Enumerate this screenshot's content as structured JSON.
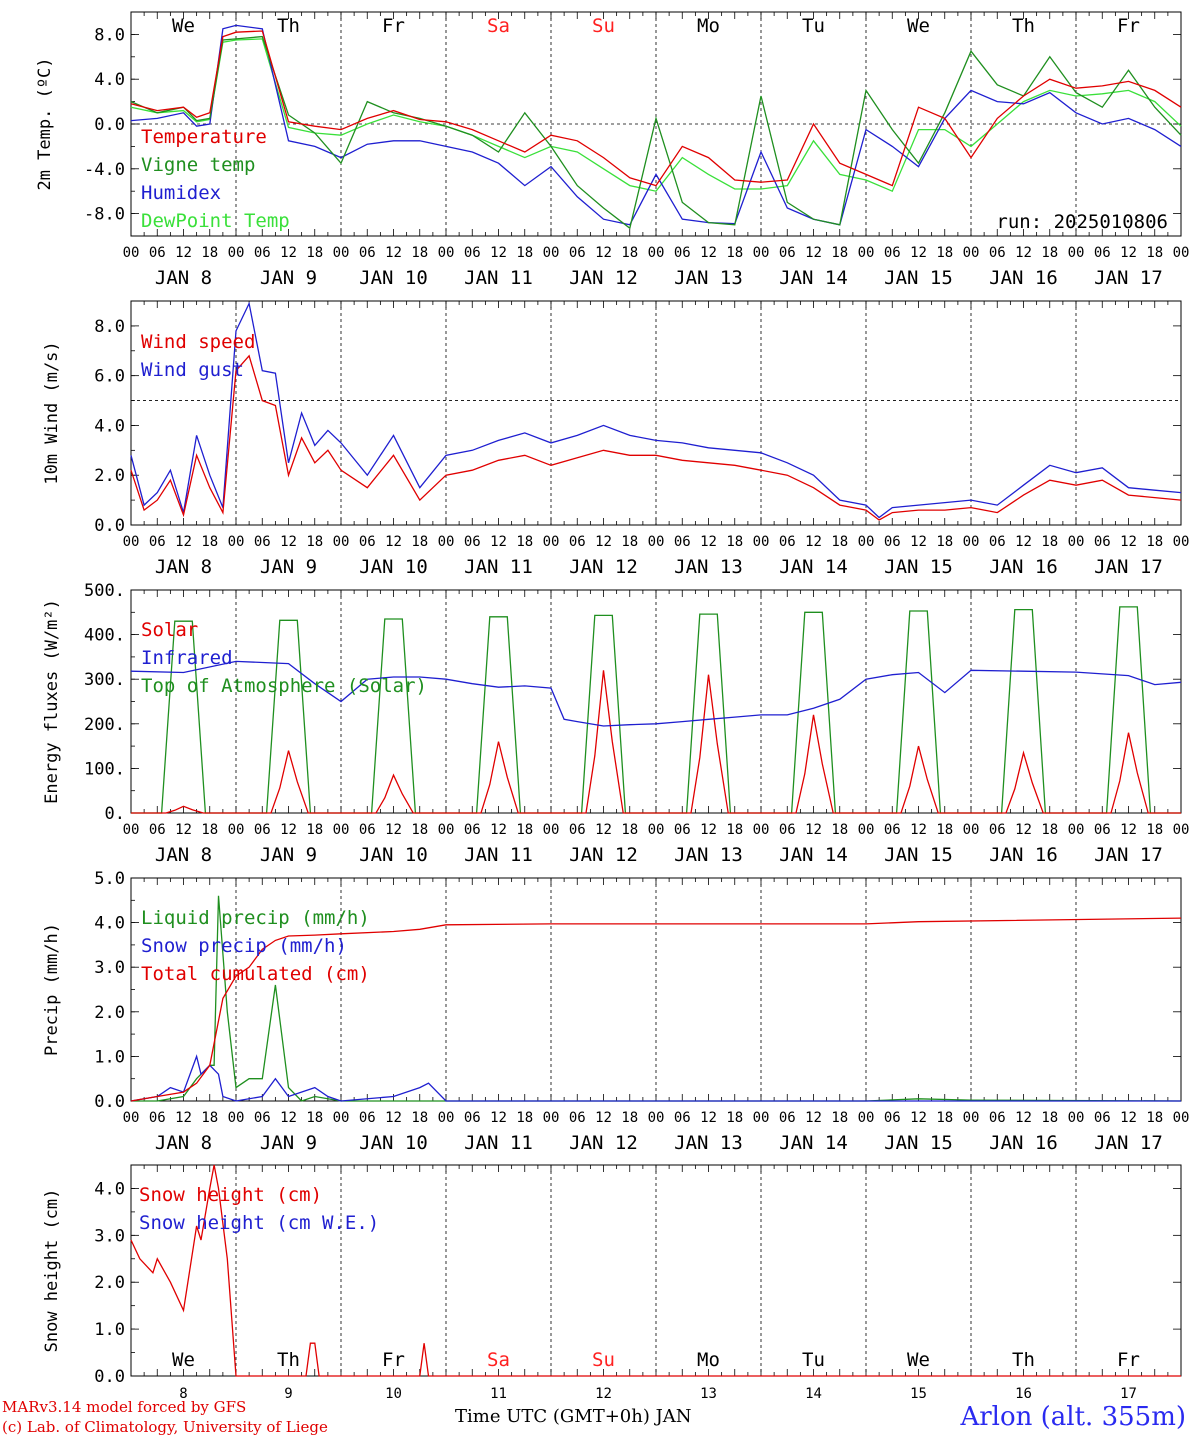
{
  "days": {
    "names": [
      "We",
      "Th",
      "Fr",
      "Sa",
      "Su",
      "Mo",
      "Tu",
      "We",
      "Th",
      "Fr"
    ],
    "weekend_flags": [
      false,
      false,
      false,
      true,
      true,
      false,
      false,
      false,
      false,
      false
    ],
    "dates": [
      "JAN  8",
      "JAN  9",
      "JAN 10",
      "JAN 11",
      "JAN 12",
      "JAN 13",
      "JAN 14",
      "JAN 15",
      "JAN 16",
      "JAN 17"
    ],
    "bottom_numbers": [
      "8",
      "9",
      "10",
      "11",
      "12",
      "13",
      "14",
      "15",
      "16",
      "17"
    ],
    "hour_ticks": [
      "00",
      "06",
      "12",
      "18"
    ],
    "final_tick": "00"
  },
  "colors": {
    "red": "#e00000",
    "green": "#1f8f1f",
    "blue": "#1f1fd0",
    "lightgreen": "#3ae03a",
    "weekend": "#ff2020"
  },
  "chart_data": [
    {
      "type": "line",
      "ylabel": "2m Temp. (ºC)",
      "ylim": [
        -10,
        10
      ],
      "yticks": [
        -8,
        -4,
        0,
        4,
        8
      ],
      "ytick_labels": [
        "-8.0",
        "-4.0",
        "0.0",
        "4.0",
        "8.0"
      ],
      "hline": 0,
      "annotation": "run: 2025010806",
      "x_hours": [
        0,
        6,
        12,
        15,
        18,
        21,
        24,
        30,
        36,
        42,
        48,
        54,
        60,
        66,
        72,
        78,
        84,
        90,
        96,
        102,
        108,
        114,
        120,
        126,
        132,
        138,
        144,
        150,
        156,
        162,
        168,
        174,
        180,
        186,
        192,
        198,
        204,
        210,
        216,
        222,
        228,
        234,
        240
      ],
      "series": [
        {
          "name": "Temperature",
          "color": "red",
          "values": [
            1.8,
            1.2,
            1.5,
            0.6,
            1.0,
            7.8,
            8.2,
            8.3,
            0.2,
            -0.2,
            -0.5,
            0.5,
            1.2,
            0.4,
            0.2,
            -0.5,
            -1.5,
            -2.5,
            -1.0,
            -1.5,
            -3.0,
            -4.8,
            -5.5,
            -2.0,
            -3.0,
            -5.0,
            -5.2,
            -5.0,
            0.0,
            -3.5,
            -4.5,
            -5.5,
            1.5,
            0.5,
            -3.0,
            0.5,
            2.5,
            4.0,
            3.2,
            3.4,
            3.8,
            3.0,
            1.5
          ]
        },
        {
          "name": "Vigne temp",
          "color": "green",
          "values": [
            2.0,
            1.0,
            1.5,
            0.3,
            0.5,
            7.5,
            7.6,
            7.8,
            0.8,
            -0.8,
            -3.5,
            2.0,
            1.0,
            0.5,
            -0.2,
            -1.0,
            -2.5,
            1.0,
            -2.0,
            -5.5,
            -7.5,
            -9.3,
            0.5,
            -7.0,
            -8.8,
            -9.0,
            2.5,
            -7.0,
            -8.5,
            -9.0,
            3.0,
            -0.5,
            -3.5,
            1.0,
            6.5,
            3.5,
            2.5,
            6.0,
            2.8,
            1.5,
            4.8,
            1.5,
            -1.0
          ]
        },
        {
          "name": "Humidex",
          "color": "blue",
          "values": [
            0.3,
            0.5,
            1.0,
            -0.2,
            0.0,
            8.5,
            8.8,
            8.5,
            -1.5,
            -2.0,
            -3.0,
            -1.8,
            -1.5,
            -1.5,
            -2.0,
            -2.5,
            -3.5,
            -5.5,
            -3.8,
            -6.5,
            -8.5,
            -9.0,
            -4.5,
            -8.5,
            -8.8,
            -8.9,
            -2.5,
            -7.5,
            -8.5,
            -9.0,
            -0.5,
            -2.0,
            -3.8,
            0.5,
            3.0,
            2.0,
            1.8,
            2.8,
            1.0,
            0.0,
            0.5,
            -0.5,
            -2.0
          ]
        },
        {
          "name": "DewPoint Temp",
          "color": "lightgreen",
          "values": [
            1.5,
            1.0,
            1.2,
            0.2,
            0.4,
            7.3,
            7.5,
            7.6,
            -0.3,
            -0.8,
            -1.0,
            0.0,
            0.8,
            0.2,
            -0.2,
            -1.0,
            -2.0,
            -3.0,
            -2.0,
            -2.5,
            -4.0,
            -5.5,
            -6.0,
            -3.0,
            -4.5,
            -5.8,
            -5.8,
            -5.5,
            -1.5,
            -4.5,
            -5.0,
            -6.0,
            -0.5,
            -0.5,
            -2.0,
            0.0,
            2.0,
            3.0,
            2.5,
            2.7,
            3.0,
            2.0,
            -0.2
          ]
        }
      ]
    },
    {
      "type": "line",
      "ylabel": "10m Wind (m/s)",
      "ylim": [
        0,
        9
      ],
      "yticks": [
        0,
        2,
        4,
        6,
        8
      ],
      "ytick_labels": [
        "0.0",
        "2.0",
        "4.0",
        "6.0",
        "8.0"
      ],
      "hline": 5,
      "x_hours": [
        0,
        3,
        6,
        9,
        12,
        15,
        18,
        21,
        24,
        27,
        30,
        33,
        36,
        39,
        42,
        45,
        48,
        54,
        60,
        66,
        72,
        78,
        84,
        90,
        96,
        102,
        108,
        114,
        120,
        126,
        132,
        138,
        144,
        150,
        156,
        162,
        168,
        171,
        174,
        180,
        186,
        192,
        198,
        204,
        210,
        216,
        222,
        228,
        234,
        240
      ],
      "series": [
        {
          "name": "Wind speed",
          "color": "red",
          "values": [
            2.2,
            0.6,
            1.0,
            1.8,
            0.4,
            2.8,
            1.5,
            0.5,
            6.2,
            6.8,
            5.0,
            4.8,
            2.0,
            3.5,
            2.5,
            3.0,
            2.2,
            1.5,
            2.8,
            1.0,
            2.0,
            2.2,
            2.6,
            2.8,
            2.4,
            2.7,
            3.0,
            2.8,
            2.8,
            2.6,
            2.5,
            2.4,
            2.2,
            2.0,
            1.5,
            0.8,
            0.6,
            0.2,
            0.5,
            0.6,
            0.6,
            0.7,
            0.5,
            1.2,
            1.8,
            1.6,
            1.8,
            1.2,
            1.1,
            1.0
          ]
        },
        {
          "name": "Wind gust",
          "color": "blue",
          "values": [
            2.8,
            0.8,
            1.3,
            2.2,
            0.5,
            3.6,
            2.0,
            0.7,
            7.8,
            8.9,
            6.2,
            6.1,
            2.5,
            4.5,
            3.2,
            3.8,
            3.3,
            2.0,
            3.6,
            1.5,
            2.8,
            3.0,
            3.4,
            3.7,
            3.3,
            3.6,
            4.0,
            3.6,
            3.4,
            3.3,
            3.1,
            3.0,
            2.9,
            2.5,
            2.0,
            1.0,
            0.8,
            0.3,
            0.7,
            0.8,
            0.9,
            1.0,
            0.8,
            1.6,
            2.4,
            2.1,
            2.3,
            1.5,
            1.4,
            1.3
          ]
        }
      ]
    },
    {
      "type": "line",
      "ylabel": "Energy fluxes (W/m²)",
      "ylim": [
        0,
        500
      ],
      "yticks": [
        0,
        100,
        200,
        300,
        400,
        500
      ],
      "ytick_labels": [
        "0.",
        "100.",
        "200.",
        "300.",
        "400.",
        "500."
      ],
      "solar_peaks": [
        15,
        140,
        85,
        160,
        320,
        310,
        220,
        150,
        135,
        180
      ],
      "toa_peaks": [
        430,
        432,
        435,
        440,
        443,
        446,
        450,
        453,
        456,
        462
      ],
      "infrared": {
        "x_hours": [
          0,
          12,
          24,
          36,
          42,
          48,
          54,
          60,
          66,
          72,
          78,
          84,
          90,
          96,
          99,
          102,
          108,
          114,
          120,
          126,
          132,
          138,
          144,
          150,
          156,
          162,
          168,
          174,
          180,
          186,
          192,
          204,
          216,
          228,
          234,
          240
        ],
        "values": [
          318,
          315,
          340,
          335,
          290,
          250,
          300,
          305,
          305,
          300,
          290,
          282,
          285,
          280,
          210,
          205,
          195,
          198,
          200,
          205,
          210,
          215,
          220,
          220,
          235,
          255,
          300,
          310,
          315,
          270,
          320,
          318,
          316,
          308,
          288,
          293
        ]
      },
      "series": [
        {
          "name": "Solar",
          "color": "red"
        },
        {
          "name": "Infrared",
          "color": "blue"
        },
        {
          "name": "Top of Atmosphere (Solar)",
          "color": "green"
        }
      ]
    },
    {
      "type": "line",
      "ylabel": "Precip (mm/h)",
      "ylim": [
        0,
        5
      ],
      "yticks": [
        0,
        1,
        2,
        3,
        4,
        5
      ],
      "ytick_labels": [
        "0.0",
        "1.0",
        "2.0",
        "3.0",
        "4.0",
        "5.0"
      ],
      "liquid": {
        "x_hours": [
          0,
          6,
          12,
          15,
          18,
          19,
          20,
          22,
          24,
          27,
          30,
          33,
          36,
          39,
          42,
          48,
          54,
          60,
          72,
          168,
          180,
          192,
          240
        ],
        "values": [
          0.0,
          0.0,
          0.1,
          0.5,
          0.8,
          0.8,
          4.6,
          2.0,
          0.3,
          0.5,
          0.5,
          2.6,
          0.3,
          0.0,
          0.1,
          0.0,
          0.0,
          0.0,
          0.0,
          0.0,
          0.05,
          0.02,
          0.0
        ]
      },
      "snow": {
        "x_hours": [
          0,
          6,
          9,
          12,
          15,
          16,
          18,
          20,
          21,
          24,
          30,
          33,
          36,
          42,
          45,
          48,
          60,
          66,
          68,
          72,
          240
        ],
        "values": [
          0.0,
          0.1,
          0.3,
          0.2,
          1.0,
          0.6,
          0.8,
          0.6,
          0.1,
          0.0,
          0.1,
          0.5,
          0.1,
          0.3,
          0.1,
          0.0,
          0.1,
          0.3,
          0.4,
          0.0,
          0.0
        ]
      },
      "cumulated": {
        "x_hours": [
          0,
          6,
          12,
          15,
          18,
          21,
          24,
          27,
          30,
          33,
          36,
          42,
          48,
          60,
          66,
          72,
          96,
          168,
          180,
          240
        ],
        "values": [
          0.0,
          0.1,
          0.2,
          0.4,
          0.8,
          2.3,
          2.8,
          3.0,
          3.4,
          3.6,
          3.7,
          3.72,
          3.75,
          3.8,
          3.85,
          3.95,
          3.97,
          3.97,
          4.02,
          4.1
        ]
      },
      "series": [
        {
          "name": "Liquid precip (mm/h)",
          "color": "green"
        },
        {
          "name": "Snow precip (mm/h)",
          "color": "blue"
        },
        {
          "name": "Total cumulated (cm)",
          "color": "red"
        }
      ]
    },
    {
      "type": "line",
      "ylabel": "Snow height (cm)",
      "ylim": [
        0,
        4.5
      ],
      "yticks": [
        0,
        1,
        2,
        3,
        4
      ],
      "ytick_labels": [
        "0.0",
        "1.0",
        "2.0",
        "3.0",
        "4.0"
      ],
      "x_hours": [
        0,
        2,
        5,
        6,
        9,
        12,
        15,
        16,
        18,
        19,
        20,
        22,
        24,
        25,
        40,
        41,
        42,
        43,
        66,
        67,
        68,
        69,
        240
      ],
      "snow_cm": [
        2.9,
        2.5,
        2.2,
        2.5,
        2.0,
        1.4,
        3.2,
        2.9,
        4.0,
        4.5,
        4.0,
        2.5,
        0.0,
        0.0,
        0.0,
        0.7,
        0.7,
        0.0,
        0.0,
        0.7,
        0.0,
        0.0,
        0.0
      ],
      "series": [
        {
          "name": "Snow height (cm)",
          "color": "red"
        },
        {
          "name": "Snow height (cm W.E.)",
          "color": "blue"
        }
      ]
    }
  ],
  "footer": {
    "model": "MARv3.14 model forced by GFS",
    "credit": "(c) Lab. of Climatology, University of Liege",
    "xlabel": "Time UTC (GMT+0h) JAN",
    "station": "Arlon (alt. 355m)"
  }
}
